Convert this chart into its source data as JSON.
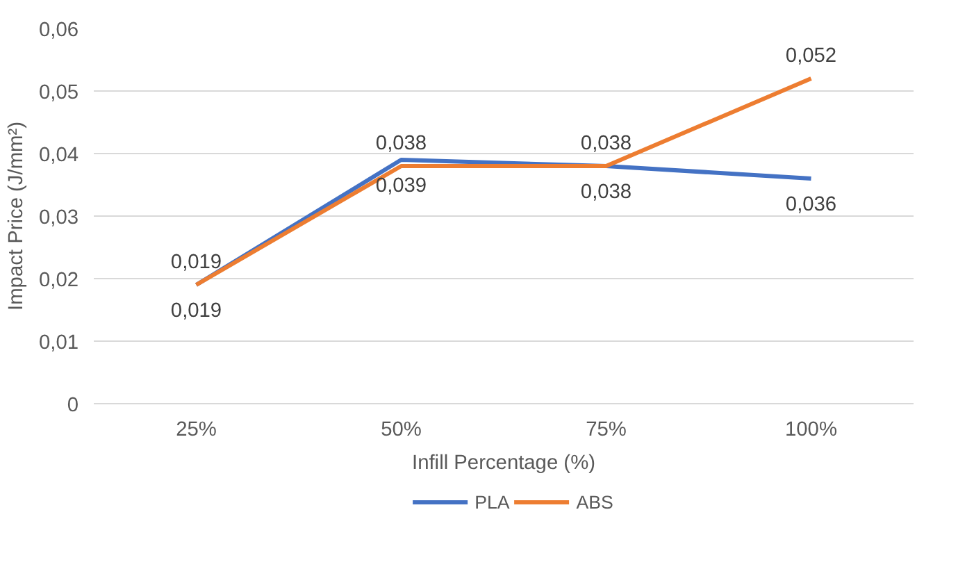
{
  "chart_data": {
    "type": "line",
    "xlabel": "Infill Percentage (%)",
    "ylabel": "Impact Price (J/mm²)",
    "categories": [
      "25%",
      "50%",
      "75%",
      "100%"
    ],
    "series": [
      {
        "name": "PLA",
        "color": "#4472c4",
        "values": [
          0.019,
          0.039,
          0.038,
          0.036
        ],
        "value_labels": [
          "0,019",
          "0,039",
          "0,038",
          "0,036"
        ]
      },
      {
        "name": "ABS",
        "color": "#ed7d31",
        "values": [
          0.019,
          0.038,
          0.038,
          0.052
        ],
        "value_labels": [
          "0,019",
          "0,038",
          "0,038",
          "0,052"
        ]
      }
    ],
    "ylim": [
      0,
      0.06
    ],
    "yticks": [
      {
        "value": 0,
        "label": "0"
      },
      {
        "value": 0.01,
        "label": "0,01"
      },
      {
        "value": 0.02,
        "label": "0,02"
      },
      {
        "value": 0.03,
        "label": "0,03"
      },
      {
        "value": 0.04,
        "label": "0,04"
      },
      {
        "value": 0.05,
        "label": "0,05"
      },
      {
        "value": 0.06,
        "label": "0,06"
      }
    ],
    "grid": "y",
    "legend": "bottom",
    "marker": "none",
    "line_style": "solid"
  }
}
